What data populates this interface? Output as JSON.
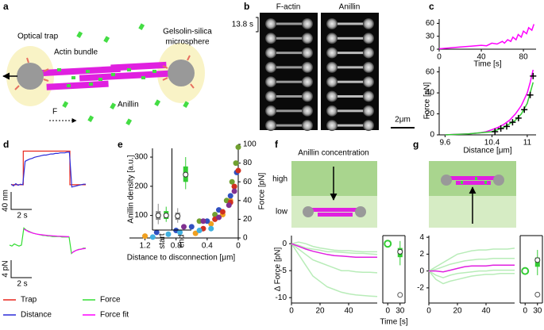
{
  "figure": {
    "panel_labels": [
      "a",
      "b",
      "c",
      "d",
      "e",
      "f",
      "g"
    ],
    "a": {
      "optical_trap": "Optical trap",
      "microsphere": [
        "Gelsolin-silica",
        "microsphere"
      ],
      "actin": "Actin bundle",
      "anillin": "Anillin",
      "force": "F"
    },
    "b": {
      "channels": [
        "F-actin",
        "Anillin"
      ],
      "interval": "13.8 s",
      "scale": "2μm"
    },
    "d": {
      "scale_distance": "40 nm",
      "scale_time_1": "2 s",
      "scale_force": "4 pN",
      "scale_time_2": "2 s"
    },
    "f": {
      "title": "Anillin concentration",
      "high": "high",
      "low": "low"
    }
  },
  "chart_data": [
    {
      "type": "line",
      "xlabel": "Time [s]",
      "xlim": [
        0,
        92
      ],
      "ylim": [
        0,
        70
      ],
      "xticks": [
        0,
        40,
        80
      ],
      "yticks": [
        0,
        30,
        60
      ],
      "series": [
        {
          "color": "#ff00ff",
          "x": [
            0,
            10,
            20,
            30,
            40,
            45,
            50,
            55,
            60,
            62,
            65,
            68,
            70,
            73,
            75,
            78,
            80,
            83,
            85,
            88,
            90
          ],
          "values": [
            1,
            3,
            5,
            7,
            9,
            8,
            14,
            12,
            18,
            14,
            22,
            18,
            28,
            22,
            34,
            28,
            42,
            36,
            50,
            44,
            58
          ]
        }
      ]
    },
    {
      "type": "line",
      "xlabel": "Distance [μm]",
      "ylabel": "Force [pN]",
      "xlim": [
        9.5,
        11.15
      ],
      "ylim": [
        0,
        65
      ],
      "xticks": [
        9.6,
        10.4,
        11
      ],
      "yticks": [
        0,
        20,
        40,
        60
      ],
      "series": [
        {
          "color": "#ff00ff",
          "x": [
            9.6,
            9.8,
            10.0,
            10.2,
            10.3,
            10.4,
            10.5,
            10.6,
            10.7,
            10.8,
            10.9,
            11.0,
            11.05,
            11.1
          ],
          "values": [
            0,
            0.5,
            1,
            2,
            3,
            5,
            7,
            10,
            14,
            20,
            28,
            40,
            50,
            62
          ]
        },
        {
          "color": "#33cc33",
          "x": [
            9.6,
            10.0,
            10.4,
            10.6,
            10.8,
            10.9,
            11.0,
            11.1
          ],
          "values": [
            0,
            1,
            3,
            7,
            14,
            20,
            30,
            50
          ]
        },
        {
          "color": "#000000",
          "marker": "cross",
          "x": [
            10.45,
            10.55,
            10.65,
            10.75,
            10.85,
            10.95,
            11.05,
            11.1
          ],
          "values": [
            3,
            6,
            8,
            12,
            16,
            24,
            38,
            56
          ]
        }
      ]
    },
    {
      "type": "trace",
      "xlim": [
        0,
        8
      ],
      "ylim": [
        -10,
        65
      ],
      "series": [
        {
          "name": "Trap",
          "color": "#e8261c",
          "x": [
            0,
            1.3,
            1.3,
            6.3,
            6.3,
            8
          ],
          "values": [
            0,
            0,
            60,
            60,
            0,
            0
          ]
        },
        {
          "name": "Distance",
          "color": "#2b2bd9",
          "x": [
            0,
            0.25,
            0.5,
            0.75,
            1,
            1.25,
            1.5,
            1.75,
            2,
            2.25,
            2.5,
            2.75,
            3,
            3.25,
            3.5,
            3.75,
            4,
            4.25,
            4.5,
            4.75,
            5,
            5.25,
            5.5,
            5.75,
            6,
            6.25,
            6.5,
            6.75,
            7,
            7.25,
            7.5,
            7.75,
            8
          ],
          "values": [
            1,
            -2,
            2,
            -1,
            1,
            0,
            42,
            44,
            46,
            47,
            49,
            50,
            51,
            52,
            53,
            53,
            54,
            55,
            55,
            56,
            56,
            57,
            57,
            57,
            58,
            58,
            -4,
            -3,
            -2,
            -1,
            0,
            1,
            1
          ]
        }
      ]
    },
    {
      "type": "trace",
      "xlim": [
        0,
        8
      ],
      "ylim": [
        -12,
        20
      ],
      "series": [
        {
          "name": "Force",
          "color": "#33dd33",
          "x": [
            0,
            0.25,
            0.5,
            0.75,
            1,
            1.25,
            1.5,
            1.75,
            2,
            2.25,
            2.5,
            2.75,
            3,
            3.25,
            3.5,
            3.75,
            4,
            4.25,
            4.5,
            4.75,
            5,
            5.25,
            5.5,
            5.75,
            6,
            6.25,
            6.5,
            6.75,
            7,
            7.25,
            7.5,
            7.75,
            8
          ],
          "values": [
            0,
            -1,
            1,
            0,
            -1,
            0,
            16,
            14,
            13,
            12,
            11,
            10.5,
            10,
            9.5,
            9,
            9,
            8.5,
            8.5,
            8,
            8,
            8,
            8,
            7.5,
            7.5,
            7.5,
            7.5,
            -8,
            -6,
            -5,
            -4,
            -4,
            -3,
            -3
          ]
        },
        {
          "name": "Force fit",
          "color": "#ff00ff",
          "x": [
            1.5,
            2,
            2.5,
            3,
            4,
            5,
            6.25,
            6.3,
            6.5,
            7,
            7.5,
            8
          ],
          "values": [
            15,
            12.5,
            11,
            10,
            9,
            8.3,
            7.8,
            null,
            -7.5,
            -5,
            -3.8,
            -3.2
          ]
        }
      ]
    },
    {
      "type": "scatter",
      "xlabel": "Distance to disconnection [μm]",
      "ylabel": "Force [pN]",
      "xlim": [
        1.4,
        0
      ],
      "ylim": [
        0,
        100
      ],
      "xticks": [
        1.2,
        0.8,
        0.4,
        0
      ],
      "yticks": [
        0,
        20,
        40,
        60,
        80,
        100
      ],
      "series": [
        {
          "color": "#f0a020",
          "x": [
            1.2,
            0.55,
            0.35,
            0.2,
            0.1,
            0.05
          ],
          "values": [
            2,
            5,
            15,
            25,
            40,
            55
          ]
        },
        {
          "color": "#3050c0",
          "x": [
            1.05,
            0.8,
            0.6,
            0.4,
            0.25,
            0.1,
            0.02
          ],
          "values": [
            6,
            8,
            12,
            18,
            30,
            45,
            70
          ]
        },
        {
          "color": "#70a030",
          "x": [
            0.5,
            0.3,
            0.15,
            0.08,
            0.03,
            0
          ],
          "values": [
            18,
            25,
            40,
            60,
            80,
            97
          ]
        },
        {
          "color": "#d03020",
          "x": [
            0.45,
            0.3,
            0.2,
            0.1,
            0.05,
            0
          ],
          "values": [
            10,
            20,
            28,
            38,
            55,
            72
          ]
        },
        {
          "color": "#803090",
          "x": [
            0.7,
            0.45,
            0.25,
            0.12,
            0.05
          ],
          "values": [
            12,
            18,
            22,
            35,
            50
          ]
        },
        {
          "color": "#40b0e0",
          "x": [
            1.1,
            0.9,
            0.75,
            0.5,
            0.35
          ],
          "values": [
            1,
            4,
            6,
            8,
            10
          ]
        }
      ]
    },
    {
      "type": "box",
      "ylabel": "Anillin density [a.u.]",
      "categories": [
        "start",
        "end"
      ],
      "ylim": [
        50,
        330
      ],
      "yticks": [
        100,
        200,
        300
      ],
      "series": [
        {
          "color": "#8c8c8c",
          "q1": [
            85,
            85
          ],
          "median": [
            100,
            98
          ],
          "q3": [
            115,
            110
          ],
          "min": [
            70,
            75
          ],
          "max": [
            140,
            125
          ]
        },
        {
          "color": "#33cc33",
          "q1": [
            88,
            215
          ],
          "median": [
            100,
            240
          ],
          "q3": [
            115,
            268
          ],
          "min": [
            78,
            190
          ],
          "max": [
            130,
            300
          ]
        }
      ]
    },
    {
      "type": "line",
      "ylabel": "Δ Force [pN]",
      "xlim": [
        0,
        60
      ],
      "ylim": [
        -11,
        1.5
      ],
      "xticks": [
        0,
        20,
        40
      ],
      "yticks": [
        0,
        -5,
        -10
      ],
      "x": [
        0,
        5,
        10,
        15,
        20,
        25,
        30,
        35,
        40,
        45,
        50,
        55,
        60
      ],
      "series": [
        {
          "color": "#b8ecb8",
          "values": [
            0,
            -1,
            -2,
            -3,
            -3.5,
            -4,
            -4.5,
            -5,
            -5,
            -5.2,
            -5.3,
            -5.3,
            -5.4
          ]
        },
        {
          "color": "#b8ecb8",
          "values": [
            0,
            -0.3,
            -0.8,
            -1,
            -1.2,
            -1.5,
            -1.5,
            -1.6,
            -1.7,
            -1.8,
            -1.8,
            -1.9,
            -2
          ]
        },
        {
          "color": "#b8ecb8",
          "values": [
            0,
            -2,
            -4,
            -6,
            -7,
            -8,
            -8.5,
            -9,
            -9.3,
            -9.5,
            -9.6,
            -9.7,
            -9.8
          ]
        },
        {
          "color": "#b8ecb8",
          "values": [
            0,
            0.3,
            0,
            -0.5,
            -0.8,
            -1,
            -1.2,
            -1.3,
            -1.3,
            -1.4,
            -1.5,
            -1.5,
            -1.5
          ]
        },
        {
          "color": "#e020e0",
          "values": [
            0,
            -0.5,
            -1,
            -1.4,
            -1.7,
            -2,
            -2.2,
            -2.3,
            -2.4,
            -2.5,
            -2.5,
            -2.5,
            -2.5
          ]
        }
      ]
    },
    {
      "type": "box",
      "xlabel": "Time [s]",
      "xlim": [
        -12,
        42
      ],
      "ylim": [
        -11,
        1.5
      ],
      "xticks": [
        0,
        30
      ],
      "points": [
        {
          "x": 0,
          "value": 0,
          "color": "#33cc33"
        }
      ],
      "box": {
        "x": 30,
        "color": "#33cc33",
        "q1": -2.5,
        "median": -1.5,
        "q3": -0.8,
        "min": -4,
        "max": 0.5,
        "outliers": [
          -9.5
        ]
      }
    },
    {
      "type": "line",
      "xlim": [
        0,
        60
      ],
      "ylim": [
        -3.8,
        4.2
      ],
      "xticks": [
        0,
        20,
        40
      ],
      "yticks": [
        4,
        2,
        0,
        -2
      ],
      "x": [
        0,
        5,
        10,
        15,
        20,
        25,
        30,
        35,
        40,
        45,
        50,
        55,
        60
      ],
      "series": [
        {
          "color": "#b8ecb8",
          "values": [
            0,
            0.5,
            1,
            1.5,
            2,
            2.2,
            2.4,
            2.5,
            2.5,
            2.6,
            2.6,
            2.6,
            2.7
          ]
        },
        {
          "color": "#b8ecb8",
          "values": [
            0,
            -0.5,
            -0.8,
            -0.5,
            -0.3,
            -0.2,
            -0.1,
            0,
            0,
            0.1,
            0.1,
            0.1,
            0.1
          ]
        },
        {
          "color": "#b8ecb8",
          "values": [
            0,
            0.2,
            0.5,
            0.8,
            1,
            1.2,
            1.3,
            1.4,
            1.4,
            1.5,
            1.5,
            1.5,
            1.5
          ]
        },
        {
          "color": "#b8ecb8",
          "values": [
            0,
            -1,
            -1.5,
            -1.2,
            -1,
            -0.8,
            -0.6,
            -0.5,
            -0.4,
            -0.4,
            -0.3,
            -0.3,
            -0.3
          ]
        },
        {
          "color": "#e020e0",
          "values": [
            0,
            0,
            -0.1,
            0.1,
            0.3,
            0.5,
            0.6,
            0.6,
            0.6,
            0.7,
            0.7,
            0.7,
            0.7
          ]
        }
      ]
    },
    {
      "type": "box",
      "xlim": [
        -12,
        42
      ],
      "ylim": [
        -3.8,
        4.2
      ],
      "xticks": [
        0,
        30
      ],
      "points": [
        {
          "x": 0,
          "value": 0,
          "color": "#33cc33"
        }
      ],
      "box": {
        "x": 30,
        "color": "#33cc33",
        "q1": 0.5,
        "median": 1.3,
        "q3": 1.6,
        "min": -0.5,
        "max": 2.5,
        "outliers": [
          -2.8
        ]
      }
    }
  ]
}
